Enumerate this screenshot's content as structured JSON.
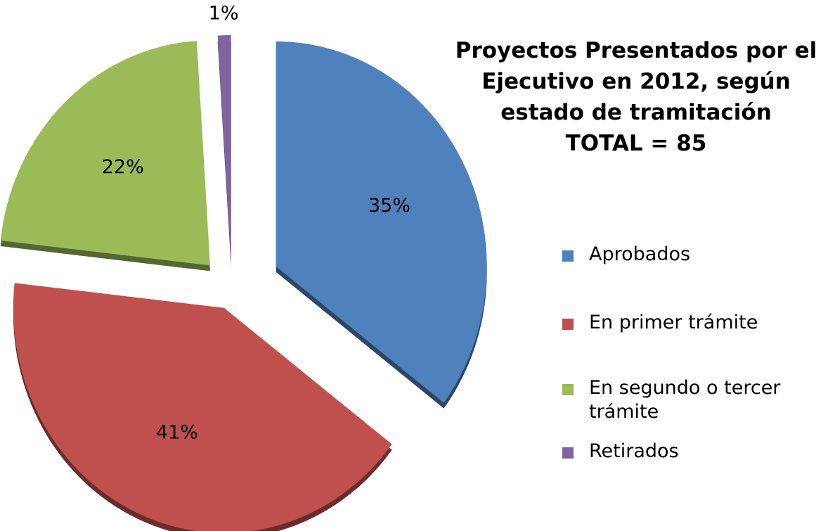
{
  "chart_data": {
    "type": "pie",
    "title": "Proyectos Presentados por el Ejecutivo en 2012, según estado de tramitación",
    "subtitle": "TOTAL = 85",
    "categories": [
      "Aprobados",
      "En primer trámite",
      "En segundo o tercer trámite",
      "Retirados"
    ],
    "values": [
      35,
      41,
      22,
      1
    ],
    "value_labels": [
      "35%",
      "41%",
      "22%",
      "1%"
    ],
    "colors": [
      "#4f81bd",
      "#c0504d",
      "#9bbb59",
      "#8064a2"
    ],
    "legend": "right"
  }
}
